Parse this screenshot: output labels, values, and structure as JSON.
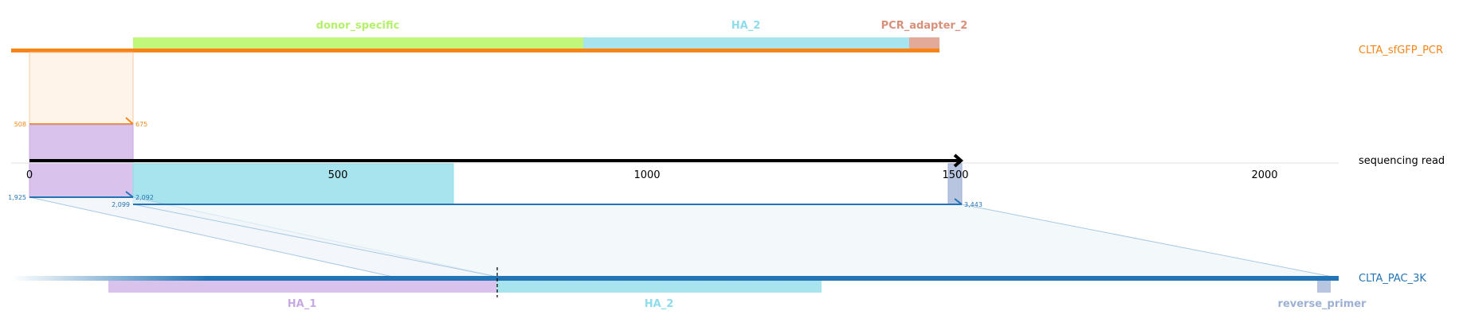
{
  "references": {
    "top": {
      "name": "CLTA_sfGFP_PCR",
      "color": "#f58518"
    },
    "read": {
      "name": "sequencing read",
      "color": "#000000"
    },
    "bottom": {
      "name": "CLTA_PAC_3K",
      "color": "#2374b5"
    }
  },
  "features_top": [
    {
      "name": "donor_specific",
      "color": "#c1f77b",
      "text_color": "#b4f06a"
    },
    {
      "name": "HA_2",
      "color": "#a8e4ee",
      "text_color": "#8fdcea"
    },
    {
      "name": "PCR_adapter_2",
      "color": "#e3aa9a",
      "text_color": "#d9907b"
    }
  ],
  "features_bottom": [
    {
      "name": "HA_1",
      "color": "#d9c3ec",
      "text_color": "#c7a9e4"
    },
    {
      "name": "HA_2",
      "color": "#a8e4ee",
      "text_color": "#8fdcea"
    },
    {
      "name": "reverse_primer",
      "color": "#b8c5e0",
      "text_color": "#9eb0d4"
    }
  ],
  "axis": {
    "ticks": [
      "0",
      "500",
      "1000",
      "1500",
      "2000"
    ],
    "tick_values": [
      0,
      500,
      1000,
      1500,
      2000
    ]
  },
  "alignments": {
    "top": {
      "read_start": "508",
      "read_end": "675"
    },
    "bottom_1": {
      "ref_start": "1,925",
      "ref_end": "2,092"
    },
    "bottom_2": {
      "ref_start": "2,099",
      "ref_end": "3,443"
    }
  }
}
